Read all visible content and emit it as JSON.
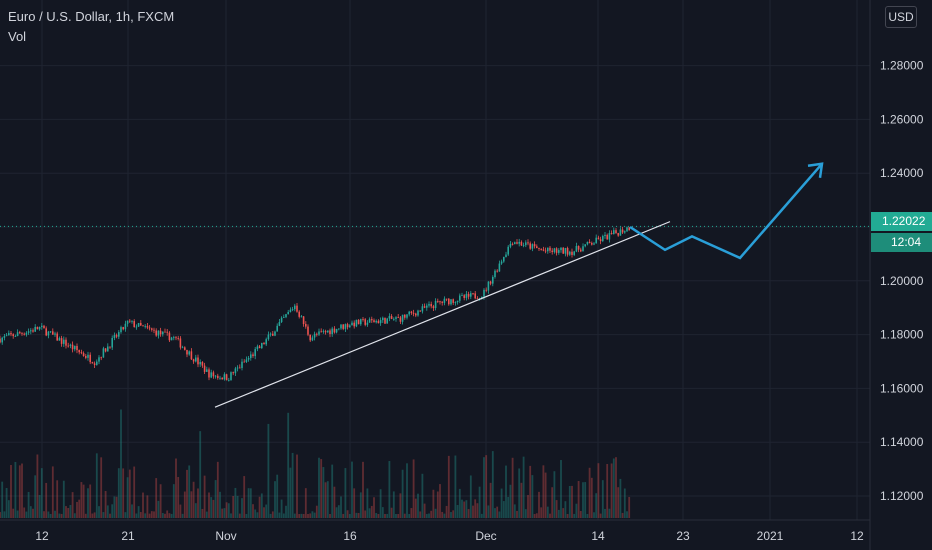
{
  "legend": {
    "symbol": "Euro / U.S. Dollar, 1h, FXCM",
    "indicator": "Vol"
  },
  "currency_button": "USD",
  "price_tag": "1.22022",
  "countdown_tag": "12:04",
  "colors": {
    "background": "#131722",
    "grid": "#1f2431",
    "axis_text": "#d1d4dc",
    "up": "#26a69a",
    "down": "#ef5350",
    "trendline": "#e0e3eb",
    "projection": "#2a9fd8",
    "last_price": "#22ab94"
  },
  "chart_data": {
    "type": "candlestick",
    "y_ticks": [
      "1.12000",
      "1.14000",
      "1.16000",
      "1.18000",
      "1.20000",
      "1.22000",
      "1.24000",
      "1.26000",
      "1.28000"
    ],
    "y_range": [
      1.1,
      1.3
    ],
    "x_ticks": [
      "12",
      "21",
      "Nov",
      "16",
      "Dec",
      "14",
      "23",
      "2021",
      "12"
    ],
    "last_price": 1.22022,
    "price_path": [
      {
        "x": "12",
        "y": 1.1785
      },
      {
        "x": "Oct 16",
        "y": 1.1825
      },
      {
        "x": "Oct 19",
        "y": 1.17
      },
      {
        "x": "21",
        "y": 1.1845
      },
      {
        "x": "Oct 27",
        "y": 1.1785
      },
      {
        "x": "Oct 30",
        "y": 1.165
      },
      {
        "x": "Nov",
        "y": 1.164
      },
      {
        "x": "Nov 4",
        "y": 1.176
      },
      {
        "x": "Nov 9",
        "y": 1.191
      },
      {
        "x": "Nov 11",
        "y": 1.179
      },
      {
        "x": "16",
        "y": 1.184
      },
      {
        "x": "Nov 20",
        "y": 1.186
      },
      {
        "x": "Nov 25",
        "y": 1.192
      },
      {
        "x": "Dec",
        "y": 1.195
      },
      {
        "x": "Dec 4",
        "y": 1.215
      },
      {
        "x": "Dec 8",
        "y": 1.211
      },
      {
        "x": "Dec 11",
        "y": 1.211
      },
      {
        "x": "14",
        "y": 1.215
      },
      {
        "x": "Dec 17",
        "y": 1.22
      }
    ],
    "volume": "per-bar volume histogram (up/down colored)",
    "trendline": [
      {
        "x": "Oct 30",
        "y": 1.153
      },
      {
        "x": "Dec 20",
        "y": 1.222
      }
    ],
    "projection": [
      {
        "x": "Dec 17",
        "y": 1.22
      },
      {
        "x": "Dec 21",
        "y": 1.2115
      },
      {
        "x": "Dec 24",
        "y": 1.2165
      },
      {
        "x": "Dec 30",
        "y": 1.2085
      },
      {
        "x": "Jan 8",
        "y": 1.2435
      }
    ],
    "grid": true
  }
}
